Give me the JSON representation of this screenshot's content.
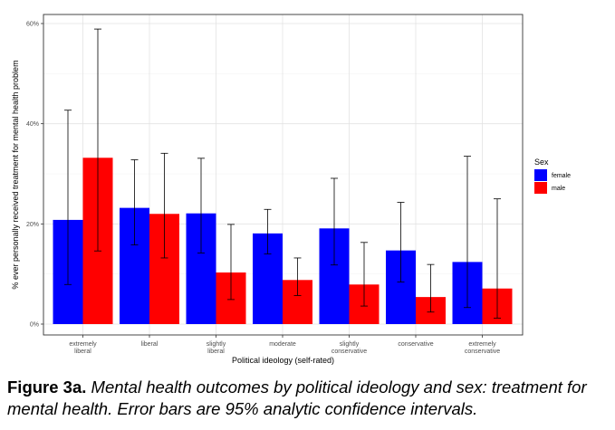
{
  "chart_data": {
    "type": "bar",
    "categories": [
      "extremely\nliberal",
      "liberal",
      "slightly\nliberal",
      "moderate",
      "slightly\nconservative",
      "conservative",
      "extremely\nconservative"
    ],
    "series": [
      {
        "name": "female",
        "values": [
          20.8,
          23.2,
          22.1,
          18.1,
          19.1,
          14.7,
          12.4
        ],
        "ci_low": [
          7.9,
          15.8,
          14.2,
          14.0,
          11.8,
          8.4,
          3.3
        ],
        "ci_high": [
          42.7,
          32.8,
          33.1,
          22.9,
          29.1,
          24.3,
          33.5
        ]
      },
      {
        "name": "male",
        "values": [
          33.2,
          22.0,
          10.3,
          8.8,
          7.9,
          5.4,
          7.1
        ],
        "ci_low": [
          14.6,
          13.2,
          4.9,
          5.7,
          3.6,
          2.4,
          1.2
        ],
        "ci_high": [
          58.9,
          34.1,
          19.9,
          13.2,
          16.3,
          11.9,
          25.0
        ]
      }
    ],
    "colors": {
      "female": "#0000FF",
      "male": "#FF0000"
    },
    "xlabel": "Political ideology (self-rated)",
    "ylabel": "% ever personally received treatment for mental health problem",
    "ylim": [
      0,
      60
    ],
    "yticks": [
      0,
      20,
      40,
      60
    ],
    "ytick_labels": [
      "0%",
      "20%",
      "40%",
      "60%"
    ],
    "legend": {
      "title": "Sex",
      "placement": "right"
    },
    "grid": true
  },
  "caption": {
    "label": "Figure 3a.",
    "text": "Mental health outcomes by political ideology and sex: treatment for mental health. Error bars are 95% analytic confidence intervals."
  }
}
